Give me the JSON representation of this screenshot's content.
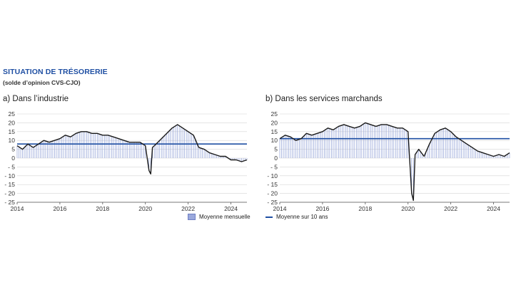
{
  "header": {
    "title": "SITUATION DE TRÉSORERIE",
    "subtitle": "(solde d’opinion CVS-CJO)"
  },
  "panels": {
    "a_title": "a)  Dans l’industrie",
    "b_title": "b)  Dans les services marchands"
  },
  "legend": {
    "monthly": "Moyenne mensuelle",
    "ten_year": "Moyenne sur 10 ans"
  },
  "colors": {
    "series_line": "#1a1a1a",
    "average_line": "#1f4fa3",
    "monthly_bars": "#8f9fd6",
    "grid": "#d6d6d6"
  },
  "chart_data": [
    {
      "type": "bar",
      "id": "industrie",
      "title": "a)  Dans l’industrie",
      "ylim": [
        -25,
        25
      ],
      "yticks": [
        25,
        20,
        15,
        10,
        5,
        0,
        -5,
        -10,
        -15,
        -20,
        -25
      ],
      "ytick_labels": [
        "25",
        "20",
        "15",
        "10",
        "5",
        "0",
        "- 5",
        "- 10",
        "- 15",
        "- 20",
        "- 25"
      ],
      "xlim": [
        2014.0,
        2024.75
      ],
      "xticks": [
        2014,
        2016,
        2018,
        2020,
        2022,
        2024
      ],
      "ten_year_average": 8,
      "grid": "horizontal",
      "x": [
        2014.0,
        2014.25,
        2014.5,
        2014.75,
        2015.0,
        2015.25,
        2015.5,
        2015.75,
        2016.0,
        2016.25,
        2016.5,
        2016.75,
        2017.0,
        2017.25,
        2017.5,
        2017.75,
        2018.0,
        2018.25,
        2018.5,
        2018.75,
        2019.0,
        2019.25,
        2019.5,
        2019.75,
        2020.0,
        2020.17,
        2020.25,
        2020.33,
        2020.5,
        2020.75,
        2021.0,
        2021.25,
        2021.5,
        2021.75,
        2022.0,
        2022.25,
        2022.5,
        2022.75,
        2023.0,
        2023.25,
        2023.5,
        2023.75,
        2024.0,
        2024.25,
        2024.5,
        2024.75
      ],
      "values": [
        7,
        5,
        8,
        6,
        8,
        10,
        9,
        10,
        11,
        13,
        12,
        14,
        15,
        15,
        14,
        14,
        13,
        13,
        12,
        11,
        10,
        9,
        9,
        9,
        7,
        -7,
        -9,
        6,
        8,
        11,
        14,
        17,
        19,
        17,
        15,
        13,
        6,
        5,
        3,
        2,
        1,
        1,
        -1,
        -1,
        -2,
        -1
      ]
    },
    {
      "type": "bar",
      "id": "services",
      "title": "b)  Dans les services marchands",
      "ylim": [
        -25,
        25
      ],
      "yticks": [
        25,
        20,
        15,
        10,
        5,
        0,
        -5,
        -10,
        -15,
        -20,
        -25
      ],
      "ytick_labels": [
        "25",
        "20",
        "15",
        "10",
        "5",
        "0",
        "- 5",
        "- 10",
        "- 15",
        "- 20",
        "- 25"
      ],
      "xlim": [
        2014.0,
        2024.75
      ],
      "xticks": [
        2014,
        2016,
        2018,
        2020,
        2022,
        2024
      ],
      "ten_year_average": 11,
      "grid": "horizontal",
      "x": [
        2014.0,
        2014.25,
        2014.5,
        2014.75,
        2015.0,
        2015.25,
        2015.5,
        2015.75,
        2016.0,
        2016.25,
        2016.5,
        2016.75,
        2017.0,
        2017.25,
        2017.5,
        2017.75,
        2018.0,
        2018.25,
        2018.5,
        2018.75,
        2019.0,
        2019.25,
        2019.5,
        2019.75,
        2020.0,
        2020.17,
        2020.25,
        2020.33,
        2020.5,
        2020.75,
        2021.0,
        2021.25,
        2021.5,
        2021.75,
        2022.0,
        2022.25,
        2022.5,
        2022.75,
        2023.0,
        2023.25,
        2023.5,
        2023.75,
        2024.0,
        2024.25,
        2024.5,
        2024.75
      ],
      "values": [
        11,
        13,
        12,
        10,
        11,
        14,
        13,
        14,
        15,
        17,
        16,
        18,
        19,
        18,
        17,
        18,
        20,
        19,
        18,
        19,
        19,
        18,
        17,
        17,
        15,
        -20,
        -24,
        2,
        5,
        1,
        8,
        14,
        16,
        17,
        15,
        12,
        10,
        8,
        6,
        4,
        3,
        2,
        1,
        2,
        1,
        3
      ]
    }
  ]
}
